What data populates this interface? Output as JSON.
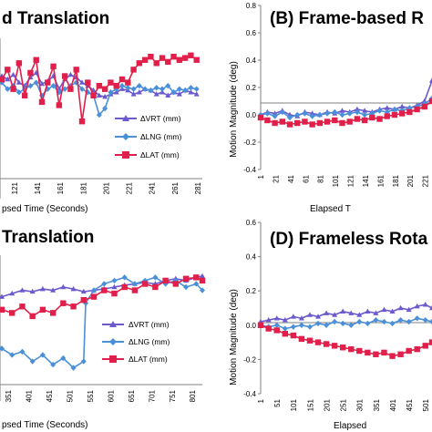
{
  "colors": {
    "vrt": "#6a5acd",
    "lng": "#4a90d9",
    "lat": "#e0204a",
    "axis": "#808080",
    "grid": "#d0d0d0",
    "background": "#ffffff"
  },
  "chart_data": [
    {
      "id": "A",
      "type": "line",
      "title": "d Translation",
      "xlabel": "psed Time (Seconds)",
      "ylabel": "",
      "grid": "off",
      "legend": "bottom-right",
      "x_ticks": [
        "121",
        "141",
        "161",
        "181",
        "201",
        "221",
        "241",
        "261",
        "281"
      ],
      "xlim": [
        110,
        285
      ],
      "ylim": [
        -1.0,
        1.0
      ],
      "series": [
        {
          "name": "ΔVRT (mm)",
          "marker": "triangle",
          "x": [
            110,
            115,
            120,
            125,
            130,
            135,
            140,
            145,
            150,
            155,
            160,
            165,
            170,
            175,
            180,
            185,
            190,
            195,
            200,
            205,
            210,
            215,
            220,
            225,
            230,
            235,
            240,
            245,
            250,
            255,
            260,
            265,
            270,
            275,
            280
          ],
          "values": [
            0.5,
            0.45,
            0.52,
            0.4,
            0.35,
            0.48,
            0.55,
            0.38,
            0.42,
            0.5,
            0.3,
            0.45,
            0.52,
            0.48,
            0.4,
            0.35,
            0.28,
            0.2,
            0.18,
            0.22,
            0.25,
            0.3,
            0.28,
            0.22,
            0.25,
            0.3,
            0.28,
            0.22,
            0.25,
            0.2,
            0.25,
            0.22,
            0.28,
            0.25,
            0.22
          ]
        },
        {
          "name": "ΔLNG (mm)",
          "marker": "diamond",
          "x": [
            110,
            115,
            120,
            125,
            130,
            135,
            140,
            145,
            150,
            155,
            160,
            165,
            170,
            175,
            180,
            185,
            190,
            195,
            200,
            205,
            210,
            215,
            220,
            225,
            230,
            235,
            240,
            245,
            250,
            255,
            260,
            265,
            270,
            275,
            280
          ],
          "values": [
            0.4,
            0.3,
            0.35,
            0.25,
            0.3,
            0.35,
            0.4,
            0.2,
            0.3,
            0.35,
            0.25,
            0.3,
            0.35,
            0.4,
            0.3,
            0.25,
            0.2,
            -0.1,
            0.0,
            0.25,
            0.3,
            0.35,
            0.32,
            0.3,
            0.35,
            0.3,
            0.28,
            0.32,
            0.3,
            0.35,
            0.25,
            0.3,
            0.28,
            0.32,
            0.3
          ]
        },
        {
          "name": "ΔLAT (mm)",
          "marker": "square",
          "x": [
            110,
            115,
            120,
            125,
            130,
            135,
            140,
            145,
            150,
            155,
            160,
            165,
            170,
            175,
            180,
            185,
            190,
            195,
            200,
            205,
            210,
            215,
            220,
            225,
            230,
            235,
            240,
            245,
            250,
            255,
            260,
            265,
            270,
            275,
            280
          ],
          "values": [
            0.45,
            0.6,
            0.3,
            0.7,
            0.2,
            0.55,
            0.75,
            0.1,
            0.4,
            0.65,
            0.05,
            0.5,
            0.3,
            0.6,
            -0.2,
            0.4,
            0.2,
            0.35,
            0.3,
            0.4,
            0.35,
            0.45,
            0.4,
            0.6,
            0.7,
            0.75,
            0.8,
            0.7,
            0.78,
            0.72,
            0.8,
            0.75,
            0.78,
            0.82,
            0.75
          ]
        }
      ]
    },
    {
      "id": "B",
      "type": "line",
      "title": "(B) Frame-based R",
      "xlabel": "Elapsed T",
      "ylabel": "Motion Magnitude (deg)",
      "grid": "off",
      "legend": "none",
      "ylim": [
        -0.4,
        0.8
      ],
      "y_ticks": [
        "0.8",
        "0.6",
        "0.4",
        "0.2",
        "0.0",
        "-0.2",
        "-0.4"
      ],
      "x_ticks": [
        "1",
        "21",
        "41",
        "61",
        "81",
        "101",
        "121",
        "141",
        "161",
        "181",
        "201",
        "221"
      ],
      "xlim": [
        1,
        230
      ],
      "series": [
        {
          "name": "",
          "marker": "triangle",
          "x": [
            1,
            10,
            20,
            30,
            40,
            50,
            60,
            70,
            80,
            90,
            100,
            110,
            120,
            130,
            140,
            150,
            160,
            170,
            180,
            190,
            200,
            210,
            220,
            230
          ],
          "values": [
            0.0,
            0.02,
            0.01,
            0.03,
            0.0,
            -0.01,
            0.02,
            0.01,
            0.0,
            0.02,
            0.01,
            0.03,
            0.02,
            0.04,
            0.03,
            0.02,
            0.04,
            0.05,
            0.04,
            0.06,
            0.05,
            0.07,
            0.1,
            0.25
          ]
        },
        {
          "name": "",
          "marker": "diamond",
          "x": [
            1,
            10,
            20,
            30,
            40,
            50,
            60,
            70,
            80,
            90,
            100,
            110,
            120,
            130,
            140,
            150,
            160,
            170,
            180,
            190,
            200,
            210,
            220,
            230
          ],
          "values": [
            0.0,
            0.01,
            -0.01,
            0.02,
            -0.02,
            0.0,
            0.01,
            -0.01,
            0.0,
            0.01,
            0.02,
            0.0,
            0.01,
            0.02,
            0.0,
            0.01,
            0.03,
            0.02,
            0.04,
            0.03,
            0.05,
            0.06,
            0.08,
            0.12
          ]
        },
        {
          "name": "",
          "marker": "square",
          "x": [
            1,
            10,
            20,
            30,
            40,
            50,
            60,
            70,
            80,
            90,
            100,
            110,
            120,
            130,
            140,
            150,
            160,
            170,
            180,
            190,
            200,
            210,
            220,
            230
          ],
          "values": [
            -0.02,
            -0.04,
            -0.06,
            -0.05,
            -0.07,
            -0.06,
            -0.05,
            -0.07,
            -0.06,
            -0.05,
            -0.04,
            -0.06,
            -0.05,
            -0.03,
            -0.04,
            -0.02,
            -0.03,
            -0.01,
            0.0,
            0.01,
            0.02,
            0.04,
            0.06,
            0.1
          ]
        }
      ]
    },
    {
      "id": "C",
      "type": "line",
      "title": "Translation",
      "xlabel": "psed Time (Seconds)",
      "ylabel": "",
      "grid": "off",
      "legend": "bottom-right",
      "x_ticks": [
        "351",
        "401",
        "451",
        "501",
        "551",
        "601",
        "651",
        "701",
        "751",
        "801"
      ],
      "xlim": [
        335,
        825
      ],
      "ylim": [
        -1.2,
        1.0
      ],
      "series": [
        {
          "name": "ΔVRT (mm)",
          "marker": "triangle",
          "x": [
            335,
            360,
            385,
            410,
            435,
            460,
            485,
            510,
            535,
            560,
            585,
            610,
            635,
            660,
            685,
            710,
            735,
            760,
            785,
            810,
            825
          ],
          "values": [
            0.3,
            0.35,
            0.4,
            0.38,
            0.42,
            0.4,
            0.45,
            0.42,
            0.38,
            0.4,
            0.42,
            0.45,
            0.48,
            0.5,
            0.52,
            0.5,
            0.55,
            0.58,
            0.55,
            0.6,
            0.62
          ]
        },
        {
          "name": "ΔLNG (mm)",
          "marker": "diamond",
          "x": [
            335,
            360,
            385,
            410,
            435,
            460,
            485,
            510,
            535,
            540,
            560,
            585,
            610,
            635,
            660,
            685,
            710,
            735,
            760,
            785,
            810,
            825
          ],
          "values": [
            -0.5,
            -0.6,
            -0.55,
            -0.7,
            -0.6,
            -0.75,
            -0.65,
            -0.8,
            -0.7,
            0.2,
            0.4,
            0.5,
            0.55,
            0.6,
            0.5,
            0.55,
            0.6,
            0.5,
            0.55,
            0.45,
            0.5,
            0.4
          ]
        },
        {
          "name": "ΔLAT (mm)",
          "marker": "square",
          "x": [
            335,
            360,
            385,
            410,
            435,
            460,
            485,
            510,
            535,
            560,
            585,
            610,
            635,
            660,
            685,
            710,
            735,
            760,
            785,
            810,
            825
          ],
          "values": [
            0.1,
            0.05,
            0.15,
            0.0,
            0.1,
            0.05,
            0.2,
            0.15,
            0.25,
            0.3,
            0.4,
            0.35,
            0.45,
            0.4,
            0.5,
            0.45,
            0.55,
            0.5,
            0.58,
            0.6,
            0.55
          ]
        }
      ]
    },
    {
      "id": "D",
      "type": "line",
      "title": "(D) Frameless Rota",
      "xlabel": "Elapsed",
      "ylabel": "Motion Magnitude (deg)",
      "grid": "off",
      "legend": "none",
      "ylim": [
        -0.4,
        0.6
      ],
      "y_ticks": [
        "0.6",
        "0.4",
        "0.2",
        "0.0",
        "-0.2",
        "-0.4"
      ],
      "x_ticks": [
        "1",
        "51",
        "101",
        "151",
        "201",
        "251",
        "301",
        "351",
        "401",
        "451",
        "501"
      ],
      "xlim": [
        1,
        520
      ],
      "series": [
        {
          "name": "",
          "marker": "triangle",
          "x": [
            1,
            25,
            50,
            75,
            100,
            125,
            150,
            175,
            200,
            225,
            250,
            275,
            300,
            325,
            350,
            375,
            400,
            425,
            450,
            475,
            500,
            520
          ],
          "values": [
            0.02,
            0.03,
            0.04,
            0.03,
            0.05,
            0.04,
            0.06,
            0.05,
            0.07,
            0.06,
            0.08,
            0.07,
            0.06,
            0.08,
            0.07,
            0.09,
            0.08,
            0.1,
            0.09,
            0.11,
            0.12,
            0.1
          ]
        },
        {
          "name": "",
          "marker": "diamond",
          "x": [
            1,
            25,
            50,
            75,
            100,
            125,
            150,
            175,
            200,
            225,
            250,
            275,
            300,
            325,
            350,
            375,
            400,
            425,
            450,
            475,
            500,
            520
          ],
          "values": [
            0.0,
            -0.01,
            0.0,
            -0.02,
            -0.01,
            0.0,
            -0.01,
            0.01,
            0.0,
            0.02,
            0.01,
            0.0,
            0.02,
            0.01,
            0.03,
            0.02,
            0.01,
            0.03,
            0.02,
            0.04,
            0.03,
            0.02
          ]
        },
        {
          "name": "",
          "marker": "square",
          "x": [
            1,
            25,
            50,
            75,
            100,
            125,
            150,
            175,
            200,
            225,
            250,
            275,
            300,
            325,
            350,
            375,
            400,
            425,
            450,
            475,
            500,
            520
          ],
          "values": [
            0.0,
            -0.02,
            -0.03,
            -0.05,
            -0.06,
            -0.08,
            -0.09,
            -0.1,
            -0.11,
            -0.12,
            -0.13,
            -0.14,
            -0.15,
            -0.16,
            -0.17,
            -0.16,
            -0.18,
            -0.17,
            -0.15,
            -0.14,
            -0.12,
            -0.1
          ]
        }
      ]
    }
  ]
}
